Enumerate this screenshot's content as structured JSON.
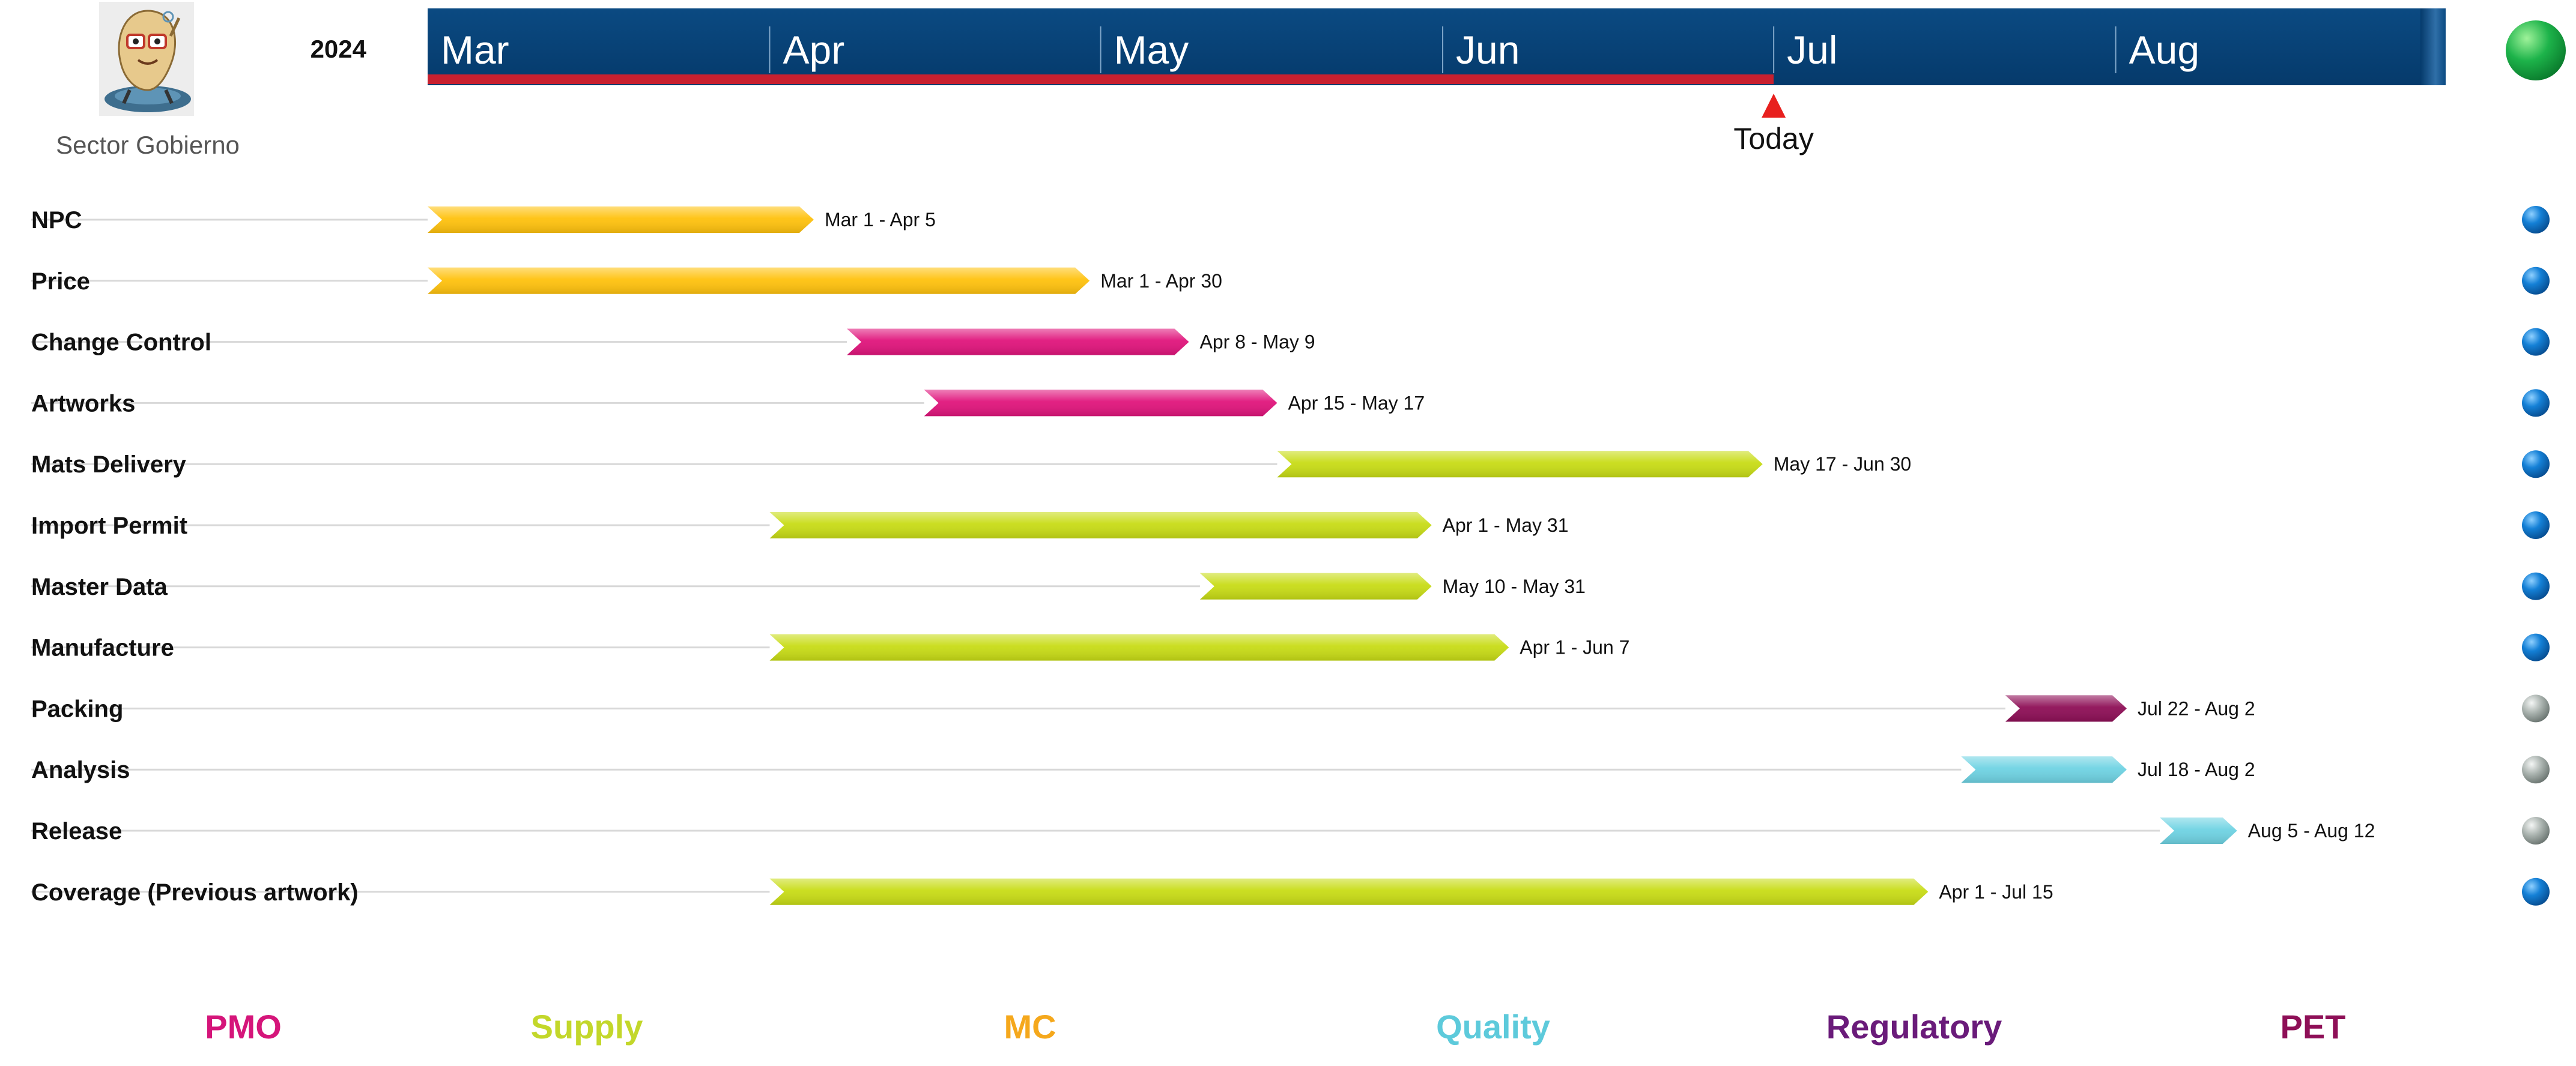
{
  "header": {
    "year": "2024",
    "org": "Sector Gobierno",
    "today_label": "Today",
    "today_date": "2024-07-01"
  },
  "legend": [
    {
      "label": "PMO",
      "color": "#D5157A"
    },
    {
      "label": "Supply",
      "color": "#C3D72A"
    },
    {
      "label": "MC",
      "color": "#F5A81C"
    },
    {
      "label": "Quality",
      "color": "#5DCADB"
    },
    {
      "label": "Regulatory",
      "color": "#6A1B7A"
    },
    {
      "label": "PET",
      "color": "#8E0F57"
    }
  ],
  "chart_data": {
    "type": "gantt",
    "months": [
      "Mar",
      "Apr",
      "May",
      "Jun",
      "Jul",
      "Aug"
    ],
    "tasks": [
      {
        "name": "NPC",
        "start": "2024-03-01",
        "end": "2024-04-05",
        "range_label": "Mar 1 - Apr 5",
        "group": "MC",
        "color": "#FFC20E",
        "status": "blue"
      },
      {
        "name": "Price",
        "start": "2024-03-01",
        "end": "2024-04-30",
        "range_label": "Mar 1 - Apr 30",
        "group": "MC",
        "color": "#FFC20E",
        "status": "blue"
      },
      {
        "name": "Change Control",
        "start": "2024-04-08",
        "end": "2024-05-09",
        "range_label": "Apr 8 - May 9",
        "group": "PMO",
        "color": "#E0157C",
        "status": "blue"
      },
      {
        "name": "Artworks",
        "start": "2024-04-15",
        "end": "2024-05-17",
        "range_label": "Apr 15 - May 17",
        "group": "PMO",
        "color": "#E0157C",
        "status": "blue"
      },
      {
        "name": "Mats Delivery",
        "start": "2024-05-17",
        "end": "2024-06-30",
        "range_label": "May 17 - Jun 30",
        "group": "Supply",
        "color": "#C8DC16",
        "status": "blue"
      },
      {
        "name": "Import Permit",
        "start": "2024-04-01",
        "end": "2024-05-31",
        "range_label": "Apr 1 - May 31",
        "group": "Supply",
        "color": "#C8DC16",
        "status": "blue"
      },
      {
        "name": "Master Data",
        "start": "2024-05-10",
        "end": "2024-05-31",
        "range_label": "May 10 - May 31",
        "group": "Supply",
        "color": "#C8DC16",
        "status": "blue"
      },
      {
        "name": "Manufacture",
        "start": "2024-04-01",
        "end": "2024-06-07",
        "range_label": "Apr 1 - Jun 7",
        "group": "Supply",
        "color": "#C8DC16",
        "status": "blue"
      },
      {
        "name": "Packing",
        "start": "2024-07-22",
        "end": "2024-08-02",
        "range_label": "Jul 22 - Aug 2",
        "group": "PET",
        "color": "#8E0F57",
        "status": "gray"
      },
      {
        "name": "Analysis",
        "start": "2024-07-18",
        "end": "2024-08-02",
        "range_label": "Jul 18 - Aug 2",
        "group": "Quality",
        "color": "#6FD3E3",
        "status": "gray"
      },
      {
        "name": "Release",
        "start": "2024-08-05",
        "end": "2024-08-12",
        "range_label": "Aug 5 - Aug 12",
        "group": "Quality",
        "color": "#6FD3E3",
        "status": "gray"
      },
      {
        "name": "Coverage (Previous artwork)",
        "start": "2024-04-01",
        "end": "2024-07-15",
        "range_label": "Apr 1 - Jul 15",
        "group": "Supply",
        "color": "#C8DC16",
        "status": "blue"
      }
    ]
  }
}
